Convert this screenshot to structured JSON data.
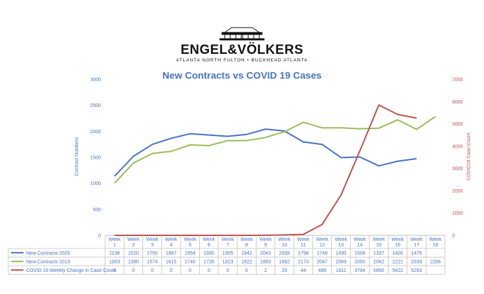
{
  "brand": {
    "name": "ENGEL&VÖLKERS",
    "subtitle": "ATLANTA NORTH FULTON • BUCKHEAD ATLANTA"
  },
  "colors": {
    "new_contracts_2020": "#4472c4",
    "new_contracts_2019": "#9bbb59",
    "covid": "#c0504d",
    "axis_left": "#4472c4",
    "axis_right": "#c0504d"
  },
  "chart_data": {
    "type": "line",
    "title": "New Contracts vs COVID 19 Cases",
    "ylabel": "Contract Numbers",
    "y2label": "COVID19 Case Count",
    "ylim": [
      0,
      3000
    ],
    "y2lim": [
      0,
      7000
    ],
    "yticks": [
      0,
      500,
      1000,
      1500,
      2000,
      2500,
      3000
    ],
    "y2ticks": [
      0,
      1000,
      2000,
      3000,
      4000,
      5000,
      6000,
      7000
    ],
    "categories": [
      "Week 1",
      "Week 2",
      "Week 3",
      "Week 4",
      "Week 5",
      "Week 6",
      "Week 7",
      "Week 8",
      "Week 9",
      "Week 10",
      "Week 11",
      "Week 12",
      "Week 13",
      "Week 14",
      "Week 15",
      "Week 16",
      "Week 17",
      "Week 18"
    ],
    "series": [
      {
        "name": "New Contracts 2020",
        "axis": "left",
        "values": [
          1138,
          1520,
          1750,
          1867,
          1954,
          1930,
          1905,
          1942,
          2043,
          2008,
          1798,
          1749,
          1495,
          1506,
          1337,
          1426,
          1475,
          null
        ]
      },
      {
        "name": "New Contracts 2019",
        "axis": "left",
        "values": [
          1003,
          1390,
          1574,
          1615,
          1740,
          1726,
          1823,
          1822,
          1883,
          1992,
          2174,
          2067,
          2069,
          2050,
          2062,
          2221,
          2039,
          2286
        ]
      },
      {
        "name": "COVID 19 Weekly Change In Case Count",
        "axis": "right",
        "values": [
          0,
          0,
          0,
          0,
          0,
          0,
          0,
          0,
          2,
          20,
          44,
          489,
          1811,
          3794,
          5850,
          5422,
          5263,
          null
        ]
      }
    ],
    "data_table": true,
    "grid": false
  }
}
